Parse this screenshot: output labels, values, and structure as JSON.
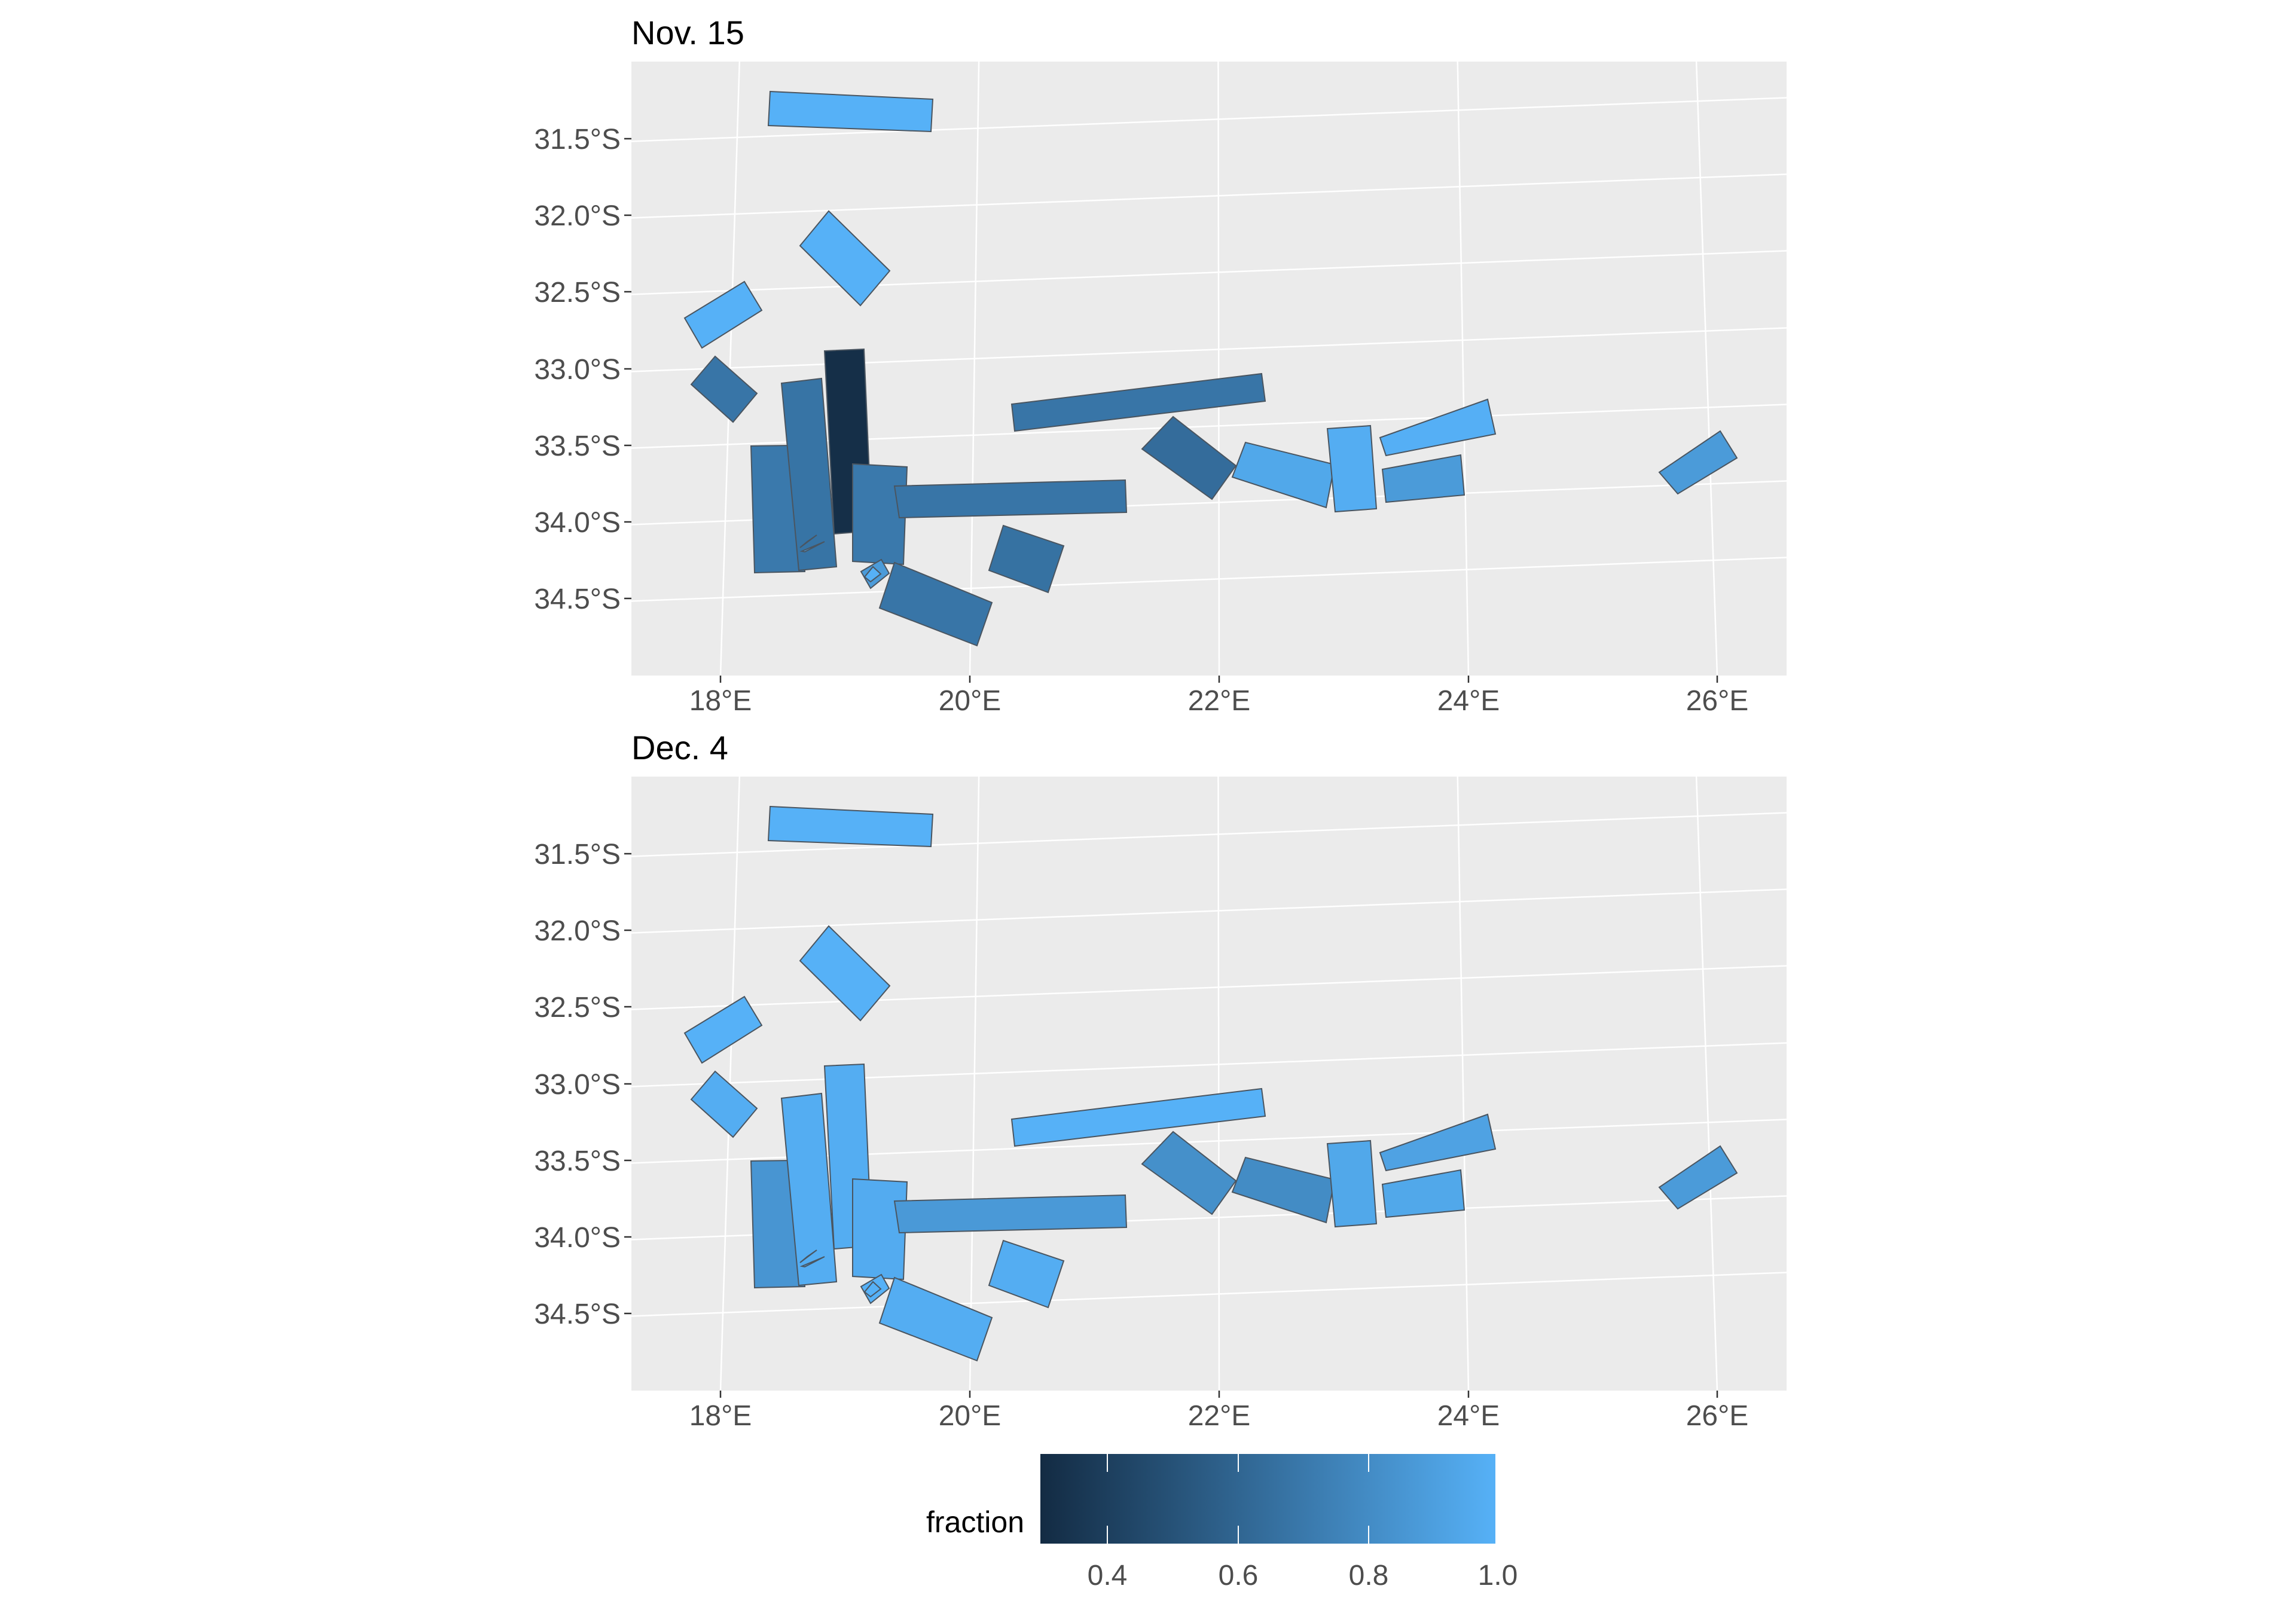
{
  "panels": [
    {
      "title": "Nov. 15"
    },
    {
      "title": "Dec. 4"
    }
  ],
  "x_ticks": [
    "18°E",
    "20°E",
    "22°E",
    "24°E",
    "26°E"
  ],
  "y_ticks": [
    "31.5°S",
    "32.0°S",
    "32.5°S",
    "33.0°S",
    "33.5°S",
    "34.0°S",
    "34.5°S"
  ],
  "legend": {
    "title": "fraction",
    "ticks": [
      "0.4",
      "0.6",
      "0.8",
      "1.0"
    ],
    "range": [
      0.28,
      1.0
    ],
    "low_color": "#132B43",
    "high_color": "#56B1F7"
  },
  "colors": {
    "panel_bg": "#EBEBEB",
    "grid": "#FFFFFF",
    "outline": "#4a5560"
  },
  "chart_data": {
    "type": "choropleth-map",
    "variable": "fraction",
    "regions": [
      {
        "id": "r1",
        "nov15": 1.0,
        "dec4": 1.0
      },
      {
        "id": "r2",
        "nov15": 1.0,
        "dec4": 1.0
      },
      {
        "id": "r3",
        "nov15": 1.0,
        "dec4": 1.0
      },
      {
        "id": "r4",
        "nov15": 0.68,
        "dec4": 0.98
      },
      {
        "id": "r5",
        "nov15": 0.7,
        "dec4": 0.85
      },
      {
        "id": "r6",
        "nov15": 0.67,
        "dec4": 0.98
      },
      {
        "id": "r7",
        "nov15": 0.3,
        "dec4": 0.98
      },
      {
        "id": "r8",
        "nov15": 0.7,
        "dec4": 0.97
      },
      {
        "id": "r9",
        "nov15": 0.68,
        "dec4": 0.87
      },
      {
        "id": "r10",
        "nov15": 1.0,
        "dec4": 1.0
      },
      {
        "id": "r11",
        "nov15": 0.88,
        "dec4": 1.0
      },
      {
        "id": "r12",
        "nov15": 0.68,
        "dec4": 0.98
      },
      {
        "id": "r13",
        "nov15": 0.66,
        "dec4": 0.98
      },
      {
        "id": "r14",
        "nov15": 0.68,
        "dec4": 1.0
      },
      {
        "id": "r15",
        "nov15": 0.63,
        "dec4": 0.82
      },
      {
        "id": "r16",
        "nov15": 0.95,
        "dec4": 0.8
      },
      {
        "id": "r17",
        "nov15": 0.98,
        "dec4": 0.95
      },
      {
        "id": "r18",
        "nov15": 0.99,
        "dec4": 0.92
      },
      {
        "id": "r19",
        "nov15": 0.88,
        "dec4": 0.95
      },
      {
        "id": "r20",
        "nov15": 0.88,
        "dec4": 0.88
      },
      {
        "id": "r21",
        "nov15": 0.98,
        "dec4": 0.95
      },
      {
        "id": "r22",
        "nov15": 1.0,
        "dec4": 1.0
      }
    ]
  }
}
